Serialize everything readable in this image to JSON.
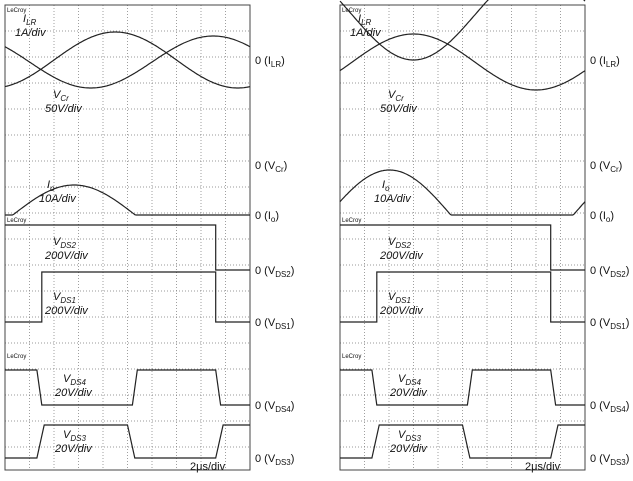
{
  "panels": [
    {
      "logos": [
        "LeCroy",
        "LeCroy",
        "LeCroy"
      ],
      "labels": [
        {
          "main": "I",
          "sub": "LR",
          "scale": "1A/div"
        },
        {
          "main": "V",
          "sub": "Cr",
          "scale": "50V/div"
        },
        {
          "main": "I",
          "sub": "o",
          "scale": "10A/div"
        },
        {
          "main": "V",
          "sub": "DS2",
          "scale": "200V/div"
        },
        {
          "main": "V",
          "sub": "DS1",
          "scale": "200V/div"
        },
        {
          "main": "V",
          "sub": "DS4",
          "scale": "20V/div"
        },
        {
          "main": "V",
          "sub": "DS3",
          "scale": "20V/div"
        }
      ],
      "zero_labels": [
        {
          "pre": "0 (I",
          "sub": "LR",
          "post": ")"
        },
        {
          "pre": "0 (V",
          "sub": "Cr",
          "post": ")"
        },
        {
          "pre": "0 (I",
          "sub": "o",
          "post": ")"
        },
        {
          "pre": "0 (V",
          "sub": "DS2",
          "post": ")"
        },
        {
          "pre": "0 (V",
          "sub": "DS1",
          "post": ")"
        },
        {
          "pre": "0 (V",
          "sub": "DS4",
          "post": ")"
        },
        {
          "pre": "0 (V",
          "sub": "DS3",
          "post": ")"
        }
      ],
      "timebase": "2μs/div"
    },
    {
      "logos": [
        "LeCroy",
        "LeCroy",
        "LeCroy"
      ],
      "labels": [
        {
          "main": "I",
          "sub": "LR",
          "scale": "1A/div"
        },
        {
          "main": "V",
          "sub": "Cr",
          "scale": "50V/div"
        },
        {
          "main": "I",
          "sub": "o",
          "scale": "10A/div"
        },
        {
          "main": "V",
          "sub": "DS2",
          "scale": "200V/div"
        },
        {
          "main": "V",
          "sub": "DS1",
          "scale": "200V/div"
        },
        {
          "main": "V",
          "sub": "DS4",
          "scale": "20V/div"
        },
        {
          "main": "V",
          "sub": "DS3",
          "scale": "20V/div"
        }
      ],
      "zero_labels": [
        {
          "pre": "0 (I",
          "sub": "LR",
          "post": ")"
        },
        {
          "pre": "0 (V",
          "sub": "Cr",
          "post": ")"
        },
        {
          "pre": "0 (I",
          "sub": "o",
          "post": ")"
        },
        {
          "pre": "0 (V",
          "sub": "DS2",
          "post": ")"
        },
        {
          "pre": "0 (V",
          "sub": "DS1",
          "post": ")"
        },
        {
          "pre": "0 (V",
          "sub": "DS4",
          "post": ")"
        },
        {
          "pre": "0 (V",
          "sub": "DS3",
          "post": ")"
        }
      ],
      "timebase": "2μs/div"
    }
  ]
}
